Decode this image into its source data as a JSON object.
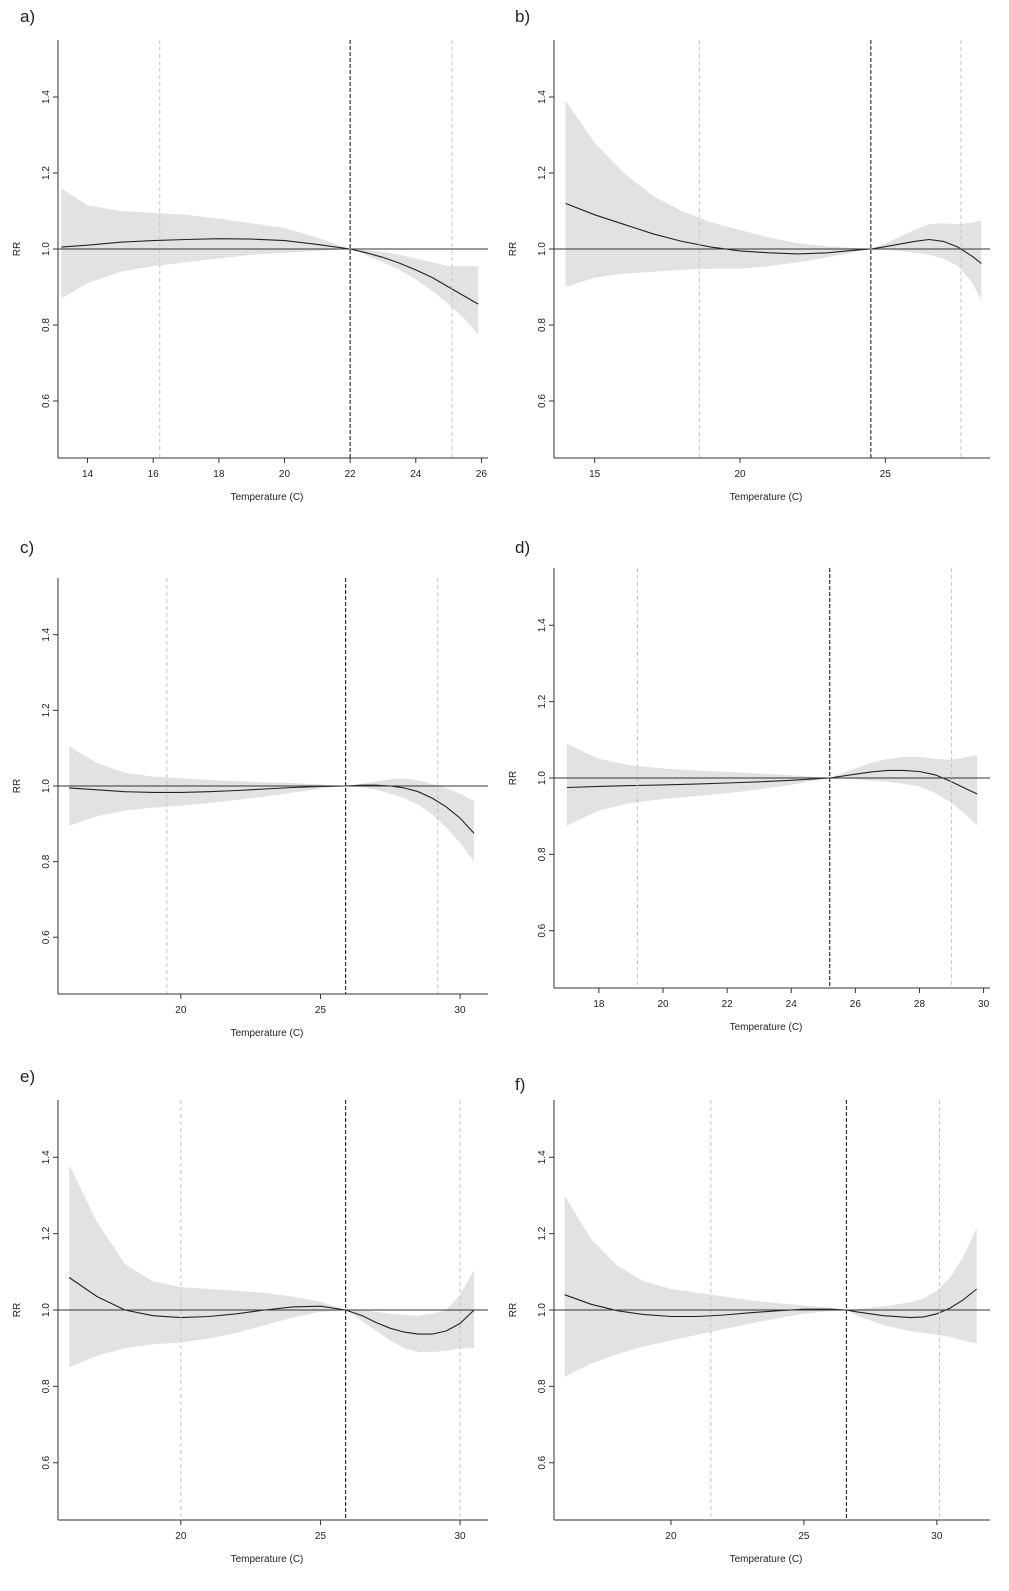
{
  "chart_data": [
    {
      "panel": "a)",
      "type": "line",
      "xlabel": "Temperature (C)",
      "ylabel": "RR",
      "xlim": [
        13.1,
        26.2
      ],
      "ylim": [
        0.45,
        1.55
      ],
      "xticks": [
        14,
        16,
        18,
        20,
        22,
        24,
        26
      ],
      "yticks": [
        0.6,
        0.8,
        1.0,
        1.2,
        1.4
      ],
      "reference_line": 1.0,
      "vlines": {
        "dashed_dark": 22.0,
        "dashed_light": [
          16.2,
          25.1
        ]
      },
      "series": [
        {
          "x": [
            13.2,
            14,
            15,
            16,
            17,
            18,
            19,
            20,
            21,
            22,
            22.5,
            23,
            23.5,
            24,
            24.5,
            25,
            25.5,
            25.9
          ],
          "y": [
            1.005,
            1.01,
            1.018,
            1.022,
            1.025,
            1.027,
            1.026,
            1.022,
            1.012,
            1.0,
            0.99,
            0.978,
            0.963,
            0.945,
            0.925,
            0.9,
            0.875,
            0.855
          ],
          "lower": [
            0.87,
            0.91,
            0.94,
            0.955,
            0.965,
            0.975,
            0.985,
            0.99,
            0.995,
            1.0,
            0.983,
            0.965,
            0.945,
            0.92,
            0.89,
            0.855,
            0.815,
            0.775
          ],
          "upper": [
            1.16,
            1.115,
            1.1,
            1.095,
            1.09,
            1.08,
            1.068,
            1.055,
            1.03,
            1.0,
            0.997,
            0.993,
            0.985,
            0.975,
            0.965,
            0.955,
            0.955,
            0.955
          ]
        }
      ]
    },
    {
      "panel": "b)",
      "type": "line",
      "xlabel": "Temperature (C)",
      "ylabel": "RR",
      "xlim": [
        13.6,
        28.6
      ],
      "ylim": [
        0.45,
        1.55
      ],
      "xticks": [
        15,
        20,
        25
      ],
      "yticks": [
        0.6,
        0.8,
        1.0,
        1.2,
        1.4
      ],
      "reference_line": 1.0,
      "vlines": {
        "dashed_dark": 24.5,
        "dashed_light": [
          18.6,
          27.6
        ]
      },
      "series": [
        {
          "x": [
            14,
            15,
            16,
            17,
            18,
            19,
            20,
            21,
            22,
            23,
            24,
            24.5,
            25,
            26,
            26.5,
            27,
            27.5,
            28,
            28.3
          ],
          "y": [
            1.12,
            1.09,
            1.065,
            1.04,
            1.02,
            1.005,
            0.995,
            0.99,
            0.987,
            0.99,
            0.997,
            1.0,
            1.006,
            1.02,
            1.025,
            1.02,
            1.005,
            0.98,
            0.962
          ],
          "lower": [
            0.9,
            0.925,
            0.935,
            0.94,
            0.945,
            0.948,
            0.948,
            0.955,
            0.965,
            0.978,
            0.993,
            1.0,
            1.0,
            0.99,
            0.985,
            0.975,
            0.955,
            0.91,
            0.865
          ],
          "upper": [
            1.39,
            1.28,
            1.2,
            1.14,
            1.1,
            1.07,
            1.05,
            1.03,
            1.015,
            1.007,
            1.002,
            1.0,
            1.015,
            1.05,
            1.065,
            1.068,
            1.065,
            1.07,
            1.075
          ]
        }
      ]
    },
    {
      "panel": "c)",
      "type": "line",
      "xlabel": "Temperature (C)",
      "ylabel": "RR",
      "xlim": [
        15.6,
        31.0
      ],
      "ylim": [
        0.45,
        1.55
      ],
      "xticks": [
        20,
        25,
        30
      ],
      "yticks": [
        0.6,
        0.8,
        1.0,
        1.2,
        1.4
      ],
      "reference_line": 1.0,
      "vlines": {
        "dashed_dark": 25.9,
        "dashed_light": [
          19.5,
          29.2
        ]
      },
      "series": [
        {
          "x": [
            16,
            17,
            18,
            19,
            20,
            21,
            22,
            23,
            24,
            25,
            25.9,
            26.5,
            27,
            27.5,
            28,
            28.5,
            29,
            29.5,
            30,
            30.5
          ],
          "y": [
            0.995,
            0.99,
            0.985,
            0.983,
            0.983,
            0.985,
            0.988,
            0.992,
            0.996,
            0.999,
            1.0,
            1.002,
            1.002,
            1.0,
            0.995,
            0.985,
            0.968,
            0.945,
            0.915,
            0.875
          ],
          "lower": [
            0.895,
            0.92,
            0.935,
            0.943,
            0.948,
            0.955,
            0.963,
            0.972,
            0.982,
            0.993,
            1.0,
            0.997,
            0.99,
            0.98,
            0.968,
            0.95,
            0.925,
            0.89,
            0.85,
            0.8
          ],
          "upper": [
            1.105,
            1.06,
            1.035,
            1.025,
            1.02,
            1.016,
            1.013,
            1.01,
            1.008,
            1.004,
            1.0,
            1.006,
            1.012,
            1.018,
            1.02,
            1.015,
            1.005,
            0.995,
            0.98,
            0.96
          ]
        }
      ]
    },
    {
      "panel": "d)",
      "type": "line",
      "xlabel": "Temperature (C)",
      "ylabel": "RR",
      "xlim": [
        16.6,
        30.2
      ],
      "ylim": [
        0.45,
        1.55
      ],
      "xticks": [
        18,
        20,
        22,
        24,
        26,
        28,
        30
      ],
      "yticks": [
        0.6,
        0.8,
        1.0,
        1.2,
        1.4
      ],
      "reference_line": 1.0,
      "vlines": {
        "dashed_dark": 25.2,
        "dashed_light": [
          19.2,
          29.0
        ]
      },
      "series": [
        {
          "x": [
            17,
            18,
            19,
            20,
            21,
            22,
            23,
            24,
            25.2,
            26,
            26.5,
            27,
            27.5,
            28,
            28.5,
            29,
            29.5,
            29.8
          ],
          "y": [
            0.975,
            0.978,
            0.98,
            0.982,
            0.984,
            0.987,
            0.99,
            0.994,
            1.0,
            1.01,
            1.016,
            1.02,
            1.02,
            1.017,
            1.008,
            0.99,
            0.97,
            0.958
          ],
          "lower": [
            0.875,
            0.915,
            0.935,
            0.945,
            0.952,
            0.96,
            0.97,
            0.982,
            1.0,
            0.997,
            0.993,
            0.99,
            0.985,
            0.978,
            0.96,
            0.935,
            0.9,
            0.875
          ],
          "upper": [
            1.09,
            1.05,
            1.033,
            1.025,
            1.02,
            1.016,
            1.012,
            1.007,
            1.0,
            1.025,
            1.04,
            1.05,
            1.055,
            1.055,
            1.05,
            1.048,
            1.055,
            1.06
          ]
        }
      ]
    },
    {
      "panel": "e)",
      "type": "line",
      "xlabel": "Temperature (C)",
      "ylabel": "RR",
      "xlim": [
        15.6,
        31.0
      ],
      "ylim": [
        0.45,
        1.55
      ],
      "xticks": [
        20,
        25,
        30
      ],
      "yticks": [
        0.6,
        0.8,
        1.0,
        1.2,
        1.4
      ],
      "reference_line": 1.0,
      "vlines": {
        "dashed_dark": 25.9,
        "dashed_light": [
          20.0,
          30.0
        ]
      },
      "series": [
        {
          "x": [
            16,
            17,
            18,
            19,
            20,
            21,
            22,
            23,
            24,
            25,
            25.9,
            26.5,
            27,
            27.5,
            28,
            28.5,
            29,
            29.5,
            30,
            30.5
          ],
          "y": [
            1.085,
            1.035,
            1.0,
            0.985,
            0.98,
            0.983,
            0.99,
            1.0,
            1.008,
            1.01,
            1.0,
            0.985,
            0.967,
            0.952,
            0.942,
            0.937,
            0.937,
            0.945,
            0.965,
            1.0
          ],
          "lower": [
            0.85,
            0.88,
            0.9,
            0.91,
            0.915,
            0.925,
            0.94,
            0.96,
            0.98,
            0.995,
            1.0,
            0.97,
            0.945,
            0.92,
            0.9,
            0.89,
            0.89,
            0.893,
            0.9,
            0.9
          ],
          "upper": [
            1.38,
            1.23,
            1.12,
            1.075,
            1.06,
            1.055,
            1.05,
            1.045,
            1.035,
            1.022,
            1.0,
            1.0,
            0.995,
            0.99,
            0.988,
            0.985,
            0.99,
            1.0,
            1.04,
            1.105
          ]
        }
      ]
    },
    {
      "panel": "f)",
      "type": "line",
      "xlabel": "Temperature (C)",
      "ylabel": "RR",
      "xlim": [
        15.6,
        32.0
      ],
      "ylim": [
        0.45,
        1.55
      ],
      "xticks": [
        20,
        25,
        30
      ],
      "yticks": [
        0.6,
        0.8,
        1.0,
        1.2,
        1.4
      ],
      "reference_line": 1.0,
      "vlines": {
        "dashed_dark": 26.6,
        "dashed_light": [
          21.5,
          30.1
        ]
      },
      "series": [
        {
          "x": [
            16,
            17,
            18,
            19,
            20,
            21,
            22,
            23,
            24,
            25,
            26,
            26.6,
            27,
            28,
            29,
            29.5,
            30,
            30.5,
            31,
            31.5
          ],
          "y": [
            1.04,
            1.015,
            0.998,
            0.988,
            0.983,
            0.983,
            0.987,
            0.993,
            0.998,
            1.002,
            1.002,
            1.0,
            0.995,
            0.985,
            0.98,
            0.982,
            0.99,
            1.005,
            1.027,
            1.055
          ],
          "lower": [
            0.825,
            0.86,
            0.885,
            0.905,
            0.92,
            0.935,
            0.95,
            0.965,
            0.978,
            0.99,
            0.997,
            1.0,
            0.985,
            0.96,
            0.945,
            0.94,
            0.935,
            0.93,
            0.92,
            0.912
          ],
          "upper": [
            1.3,
            1.185,
            1.115,
            1.075,
            1.055,
            1.045,
            1.035,
            1.025,
            1.018,
            1.012,
            1.006,
            1.0,
            1.003,
            1.01,
            1.02,
            1.03,
            1.05,
            1.085,
            1.14,
            1.215
          ]
        }
      ]
    }
  ]
}
